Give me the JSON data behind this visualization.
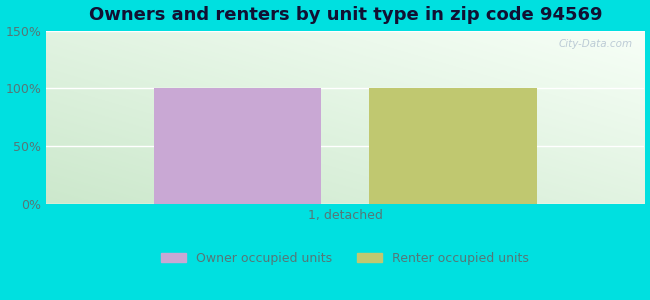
{
  "title": "Owners and renters by unit type in zip code 94569",
  "categories": [
    "1, detached"
  ],
  "owner_values": [
    100
  ],
  "renter_values": [
    100
  ],
  "owner_color": "#c9a8d4",
  "renter_color": "#c0c870",
  "ylim": [
    0,
    150
  ],
  "yticks": [
    0,
    50,
    100,
    150
  ],
  "yticklabels": [
    "0%",
    "50%",
    "100%",
    "150%"
  ],
  "bar_width": 0.28,
  "bar_gap": 0.08,
  "legend_owner": "Owner occupied units",
  "legend_renter": "Renter occupied units",
  "bg_outer": "#00e0e0",
  "watermark": "City-Data.com",
  "title_fontsize": 13,
  "label_fontsize": 9,
  "tick_color": "#557777",
  "gradient_left": "#cce8cc",
  "gradient_mid": "#e8f5e8",
  "gradient_right": "#f5faf5"
}
